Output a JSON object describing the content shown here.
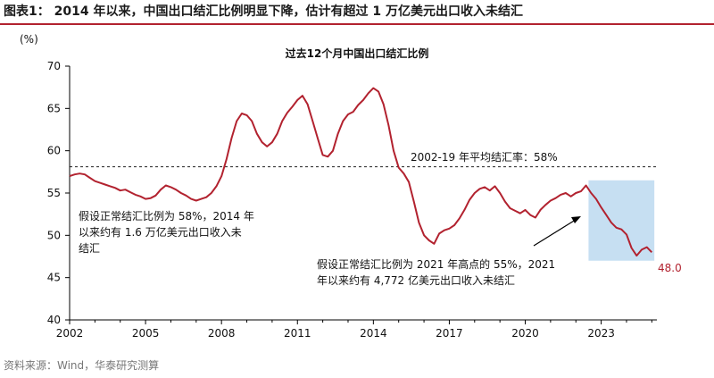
{
  "figure_title": "图表1： 2014 年以来，中国出口结汇比例明显下降，估计有超过 1 万亿美元出口收入未结汇",
  "source": "资料来源：Wind，华泰研究测算",
  "colors": {
    "line": "#b2222f",
    "shade": "#c6dff2",
    "accent": "#b2222f",
    "title_rule": "#b2222f"
  },
  "chart_data": {
    "type": "line",
    "title": "过去12个月中国出口结汇比例",
    "ylabel": "(%)",
    "xlabel": "",
    "xlim": [
      2002,
      2025.2
    ],
    "ylim": [
      40,
      70
    ],
    "x_ticks": [
      2002,
      2005,
      2008,
      2011,
      2014,
      2017,
      2020,
      2023
    ],
    "y_ticks": [
      40,
      45,
      50,
      55,
      60,
      65,
      70
    ],
    "grid": false,
    "reference_line": {
      "y": 58.1,
      "label": "2002-19 年平均结汇率：58%"
    },
    "shaded_region": {
      "x": [
        2022.5,
        2025.1
      ],
      "y": [
        47,
        56.5
      ]
    },
    "last_value_label": "48.0",
    "annotations": [
      {
        "lines": [
          "假设正常结汇比例为 58%，2014 年",
          "以来约有  1.6  万亿美元出口收入未",
          "结汇"
        ]
      },
      {
        "lines": [
          "假设正常结汇比例为 2021 年高点的 55%，2021",
          "年以来约有 4,772 亿美元出口收入未结汇"
        ]
      }
    ],
    "series": [
      {
        "points": [
          [
            2002.0,
            57.0
          ],
          [
            2002.2,
            57.2
          ],
          [
            2002.4,
            57.3
          ],
          [
            2002.6,
            57.2
          ],
          [
            2002.8,
            56.8
          ],
          [
            2003.0,
            56.4
          ],
          [
            2003.2,
            56.2
          ],
          [
            2003.4,
            56.0
          ],
          [
            2003.6,
            55.8
          ],
          [
            2003.8,
            55.6
          ],
          [
            2004.0,
            55.3
          ],
          [
            2004.2,
            55.4
          ],
          [
            2004.4,
            55.1
          ],
          [
            2004.6,
            54.8
          ],
          [
            2004.8,
            54.6
          ],
          [
            2005.0,
            54.3
          ],
          [
            2005.2,
            54.4
          ],
          [
            2005.4,
            54.7
          ],
          [
            2005.6,
            55.4
          ],
          [
            2005.8,
            55.9
          ],
          [
            2006.0,
            55.7
          ],
          [
            2006.2,
            55.4
          ],
          [
            2006.4,
            55.0
          ],
          [
            2006.6,
            54.7
          ],
          [
            2006.8,
            54.3
          ],
          [
            2007.0,
            54.1
          ],
          [
            2007.2,
            54.3
          ],
          [
            2007.4,
            54.5
          ],
          [
            2007.6,
            55.0
          ],
          [
            2007.8,
            55.8
          ],
          [
            2008.0,
            57.0
          ],
          [
            2008.2,
            59.0
          ],
          [
            2008.4,
            61.5
          ],
          [
            2008.6,
            63.5
          ],
          [
            2008.8,
            64.4
          ],
          [
            2009.0,
            64.2
          ],
          [
            2009.2,
            63.5
          ],
          [
            2009.4,
            62.0
          ],
          [
            2009.6,
            61.0
          ],
          [
            2009.8,
            60.5
          ],
          [
            2010.0,
            61.0
          ],
          [
            2010.2,
            62.0
          ],
          [
            2010.4,
            63.5
          ],
          [
            2010.6,
            64.5
          ],
          [
            2010.8,
            65.2
          ],
          [
            2011.0,
            66.0
          ],
          [
            2011.2,
            66.5
          ],
          [
            2011.4,
            65.5
          ],
          [
            2011.6,
            63.5
          ],
          [
            2011.8,
            61.5
          ],
          [
            2012.0,
            59.5
          ],
          [
            2012.2,
            59.3
          ],
          [
            2012.4,
            60.0
          ],
          [
            2012.6,
            62.0
          ],
          [
            2012.8,
            63.5
          ],
          [
            2013.0,
            64.3
          ],
          [
            2013.2,
            64.6
          ],
          [
            2013.4,
            65.4
          ],
          [
            2013.6,
            66.0
          ],
          [
            2013.8,
            66.8
          ],
          [
            2014.0,
            67.4
          ],
          [
            2014.2,
            67.0
          ],
          [
            2014.4,
            65.5
          ],
          [
            2014.6,
            63.0
          ],
          [
            2014.8,
            60.0
          ],
          [
            2015.0,
            58.0
          ],
          [
            2015.2,
            57.3
          ],
          [
            2015.4,
            56.3
          ],
          [
            2015.6,
            54.0
          ],
          [
            2015.8,
            51.5
          ],
          [
            2016.0,
            50.0
          ],
          [
            2016.2,
            49.4
          ],
          [
            2016.4,
            49.0
          ],
          [
            2016.6,
            50.2
          ],
          [
            2016.8,
            50.6
          ],
          [
            2017.0,
            50.8
          ],
          [
            2017.2,
            51.2
          ],
          [
            2017.4,
            52.0
          ],
          [
            2017.6,
            53.0
          ],
          [
            2017.8,
            54.2
          ],
          [
            2018.0,
            55.0
          ],
          [
            2018.2,
            55.5
          ],
          [
            2018.4,
            55.7
          ],
          [
            2018.6,
            55.3
          ],
          [
            2018.8,
            55.8
          ],
          [
            2019.0,
            55.0
          ],
          [
            2019.2,
            54.0
          ],
          [
            2019.4,
            53.2
          ],
          [
            2019.6,
            52.9
          ],
          [
            2019.8,
            52.6
          ],
          [
            2020.0,
            53.0
          ],
          [
            2020.2,
            52.4
          ],
          [
            2020.4,
            52.1
          ],
          [
            2020.6,
            53.0
          ],
          [
            2020.8,
            53.6
          ],
          [
            2021.0,
            54.1
          ],
          [
            2021.2,
            54.4
          ],
          [
            2021.4,
            54.8
          ],
          [
            2021.6,
            55.0
          ],
          [
            2021.8,
            54.6
          ],
          [
            2022.0,
            55.0
          ],
          [
            2022.2,
            55.2
          ],
          [
            2022.4,
            55.9
          ],
          [
            2022.6,
            55.0
          ],
          [
            2022.8,
            54.3
          ],
          [
            2023.0,
            53.3
          ],
          [
            2023.2,
            52.4
          ],
          [
            2023.4,
            51.5
          ],
          [
            2023.6,
            50.9
          ],
          [
            2023.8,
            50.7
          ],
          [
            2024.0,
            50.1
          ],
          [
            2024.2,
            48.5
          ],
          [
            2024.4,
            47.6
          ],
          [
            2024.6,
            48.3
          ],
          [
            2024.8,
            48.6
          ],
          [
            2025.0,
            48.0
          ]
        ]
      }
    ]
  }
}
